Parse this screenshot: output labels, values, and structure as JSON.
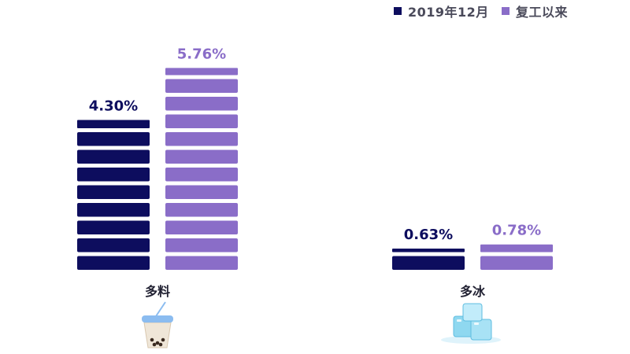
{
  "chart_data": {
    "type": "bar",
    "categories": [
      "多料",
      "多冰"
    ],
    "series": [
      {
        "name": "2019年12月",
        "values": [
          4.3,
          0.63
        ],
        "labels": [
          "4.30%",
          "0.63%"
        ]
      },
      {
        "name": "复工以来",
        "values": [
          5.76,
          0.78
        ],
        "labels": [
          "5.76%",
          "0.78%"
        ]
      }
    ],
    "legend_position": "top-right",
    "grid": false,
    "axes_visible": false
  },
  "colors": {
    "series_1": "#0d0d5e",
    "series_2": "#8a6dc8",
    "ice": "#8fd8f0",
    "cup_lid": "#8bbcf0"
  },
  "icons": [
    "bubble-tea-icon",
    "ice-cubes-icon"
  ]
}
